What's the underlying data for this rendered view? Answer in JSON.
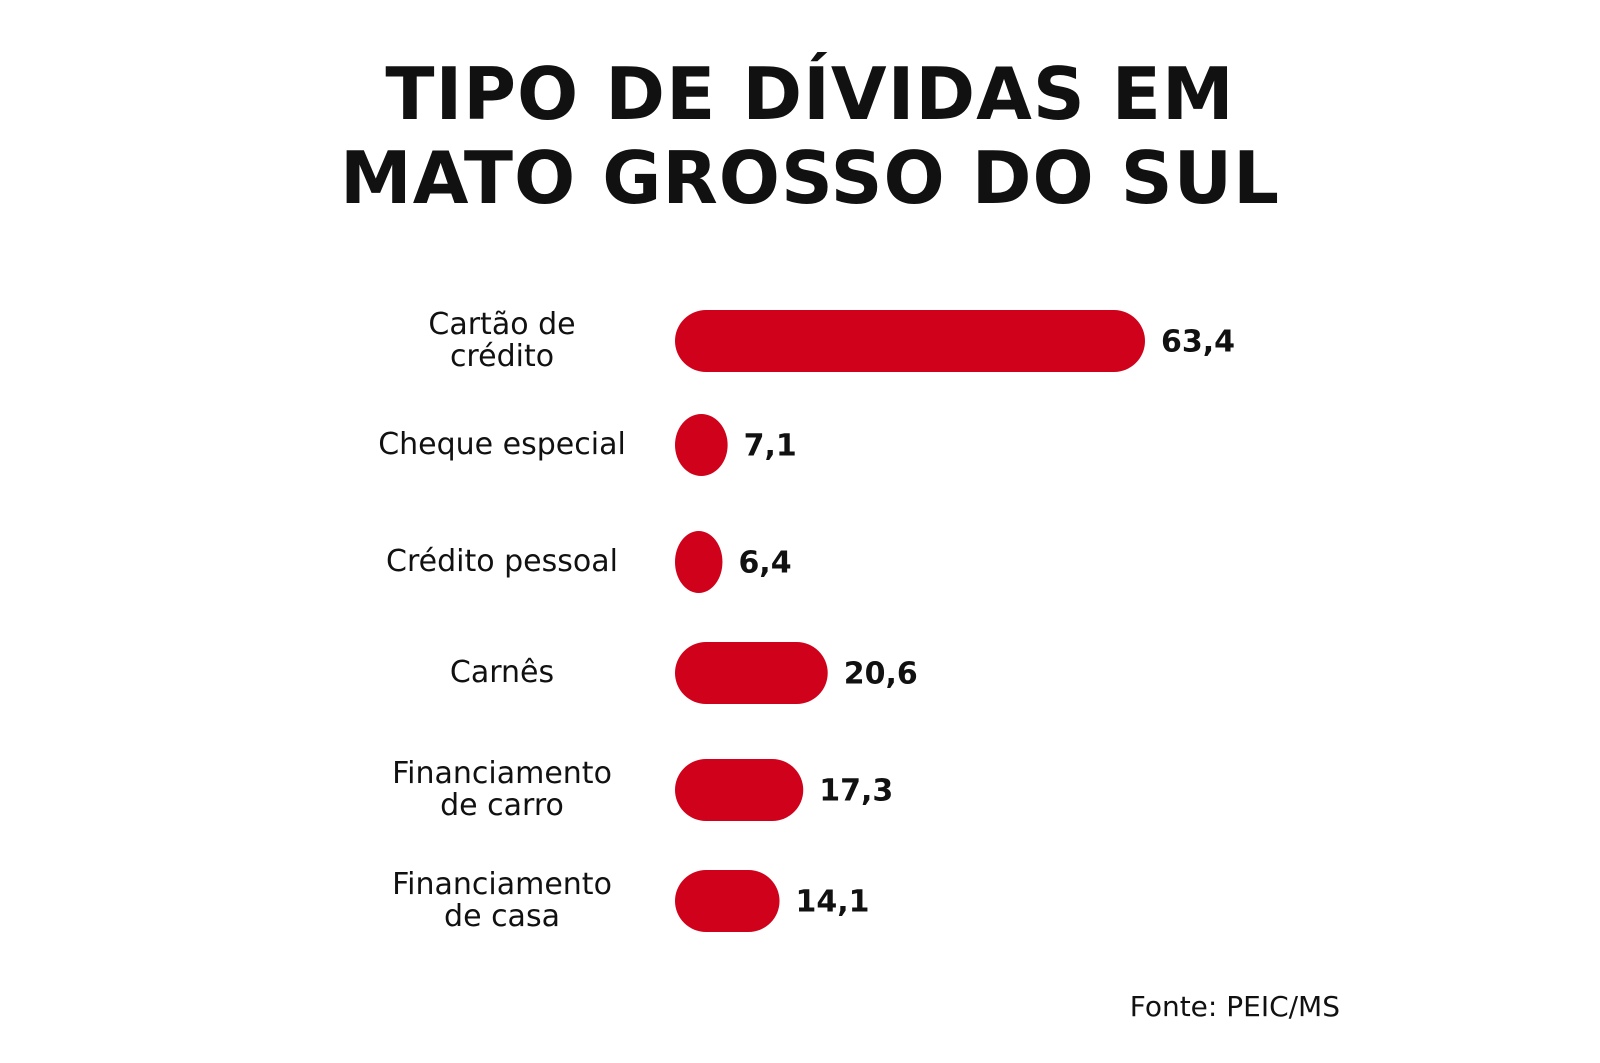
{
  "chart_data": {
    "type": "bar",
    "orientation": "horizontal",
    "title": "TIPO DE DÍVIDAS EM MATO GROSSO DO SUL",
    "categories": [
      "Cartão de crédito",
      "Cheque especial",
      "Crédito pessoal",
      "Carnês",
      "Financiamento de carro",
      "Financiamento de casa"
    ],
    "values": [
      63.4,
      7.1,
      6.4,
      20.6,
      17.3,
      14.1
    ],
    "value_labels": [
      "63,4",
      "7,1",
      "6,4",
      "20,6",
      "17,3",
      "14,1"
    ],
    "color": "#d0021b",
    "source": "Fonte: PEIC/MS"
  }
}
